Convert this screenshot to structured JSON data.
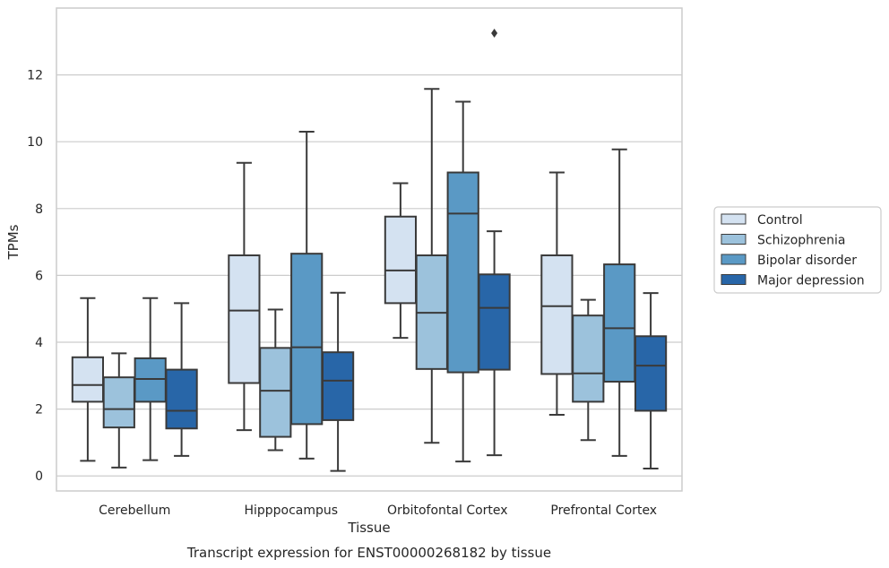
{
  "caption": "Transcript expression for ENST00000268182 by tissue",
  "chart_data": {
    "type": "box",
    "xlabel": "Tissue",
    "ylabel": "TPMs",
    "ylim": [
      -0.45,
      14.0
    ],
    "yticks": [
      0,
      2,
      4,
      6,
      8,
      10,
      12
    ],
    "grid": true,
    "legend_position": "right",
    "categories": [
      "Cerebellum",
      "Hipppocampus",
      "Orbitofontal Cortex",
      "Prefrontal Cortex"
    ],
    "series": [
      {
        "name": "Control",
        "color": "#d4e2f1",
        "boxes": [
          {
            "whislo": 0.45,
            "q1": 2.22,
            "med": 2.72,
            "q3": 3.55,
            "whishi": 5.32,
            "fliers": []
          },
          {
            "whislo": 1.37,
            "q1": 2.78,
            "med": 4.95,
            "q3": 6.6,
            "whishi": 9.37,
            "fliers": []
          },
          {
            "whislo": 4.13,
            "q1": 5.17,
            "med": 6.15,
            "q3": 7.76,
            "whishi": 8.76,
            "fliers": []
          },
          {
            "whislo": 1.83,
            "q1": 3.05,
            "med": 5.08,
            "q3": 6.6,
            "whishi": 9.08,
            "fliers": []
          }
        ]
      },
      {
        "name": "Schizophrenia",
        "color": "#9cc2dc",
        "boxes": [
          {
            "whislo": 0.25,
            "q1": 1.45,
            "med": 2.0,
            "q3": 2.95,
            "whishi": 3.67,
            "fliers": []
          },
          {
            "whislo": 0.77,
            "q1": 1.17,
            "med": 2.55,
            "q3": 3.83,
            "whishi": 4.98,
            "fliers": []
          },
          {
            "whislo": 0.99,
            "q1": 3.2,
            "med": 4.88,
            "q3": 6.6,
            "whishi": 11.58,
            "fliers": []
          },
          {
            "whislo": 1.07,
            "q1": 2.22,
            "med": 3.07,
            "q3": 4.8,
            "whishi": 5.27,
            "fliers": []
          }
        ]
      },
      {
        "name": "Bipolar disorder",
        "color": "#5a99c5",
        "boxes": [
          {
            "whislo": 0.47,
            "q1": 2.22,
            "med": 2.9,
            "q3": 3.52,
            "whishi": 5.32,
            "fliers": []
          },
          {
            "whislo": 0.52,
            "q1": 1.55,
            "med": 3.85,
            "q3": 6.65,
            "whishi": 10.3,
            "fliers": []
          },
          {
            "whislo": 0.43,
            "q1": 3.1,
            "med": 7.85,
            "q3": 9.08,
            "whishi": 11.2,
            "fliers": []
          },
          {
            "whislo": 0.6,
            "q1": 2.82,
            "med": 4.42,
            "q3": 6.33,
            "whishi": 9.77,
            "fliers": []
          }
        ]
      },
      {
        "name": "Major depression",
        "color": "#2866a8",
        "boxes": [
          {
            "whislo": 0.6,
            "q1": 1.42,
            "med": 1.95,
            "q3": 3.18,
            "whishi": 5.17,
            "fliers": []
          },
          {
            "whislo": 0.15,
            "q1": 1.67,
            "med": 2.85,
            "q3": 3.7,
            "whishi": 5.48,
            "fliers": []
          },
          {
            "whislo": 0.62,
            "q1": 3.18,
            "med": 5.03,
            "q3": 6.03,
            "whishi": 7.32,
            "fliers": [
              13.25
            ]
          },
          {
            "whislo": 0.22,
            "q1": 1.95,
            "med": 3.3,
            "q3": 4.18,
            "whishi": 5.47,
            "fliers": []
          }
        ]
      }
    ]
  }
}
